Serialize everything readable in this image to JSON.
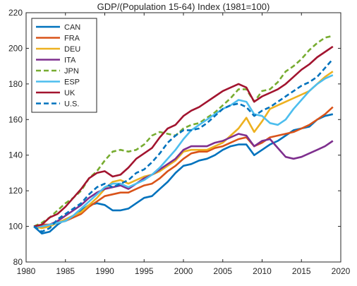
{
  "chart_data": {
    "type": "line",
    "title": "GDP/(Population 15-64) Index  (1981=100)",
    "xlabel": "",
    "ylabel": "",
    "xlim": [
      1980,
      2020
    ],
    "ylim": [
      80,
      220
    ],
    "xticks": [
      1980,
      1985,
      1990,
      1995,
      2000,
      2005,
      2010,
      2015,
      2020
    ],
    "yticks": [
      80,
      100,
      120,
      140,
      160,
      180,
      200,
      220
    ],
    "grid": false,
    "legend_position": "top-left",
    "x": [
      1981,
      1982,
      1983,
      1984,
      1985,
      1986,
      1987,
      1988,
      1989,
      1990,
      1991,
      1992,
      1993,
      1994,
      1995,
      1996,
      1997,
      1998,
      1999,
      2000,
      2001,
      2002,
      2003,
      2004,
      2005,
      2006,
      2007,
      2008,
      2009,
      2010,
      2011,
      2012,
      2013,
      2014,
      2015,
      2016,
      2017,
      2018,
      2019
    ],
    "series": [
      {
        "name": "CAN",
        "color": "#0072BD",
        "dash": "solid",
        "values": [
          100,
          96,
          97,
          101,
          104,
          106,
          109,
          112,
          113,
          112,
          109,
          109,
          110,
          113,
          116,
          117,
          121,
          125,
          130,
          134,
          135,
          137,
          138,
          140,
          143,
          145,
          146,
          146,
          140,
          143,
          146,
          148,
          151,
          154,
          155,
          156,
          160,
          162,
          163
        ]
      },
      {
        "name": "FRA",
        "color": "#D95319",
        "dash": "solid",
        "values": [
          100,
          101,
          101,
          102,
          103,
          105,
          107,
          111,
          114,
          117,
          118,
          119,
          119,
          121,
          123,
          124,
          127,
          131,
          134,
          138,
          141,
          142,
          142,
          144,
          145,
          147,
          149,
          150,
          145,
          147,
          150,
          151,
          152,
          153,
          155,
          157,
          160,
          163,
          167
        ]
      },
      {
        "name": "DEU",
        "color": "#EDB120",
        "dash": "solid",
        "values": [
          100,
          99,
          100,
          102,
          104,
          106,
          108,
          112,
          116,
          121,
          125,
          126,
          124,
          126,
          128,
          129,
          131,
          134,
          137,
          142,
          143,
          143,
          143,
          145,
          147,
          151,
          155,
          161,
          153,
          159,
          166,
          168,
          170,
          172,
          174,
          176,
          180,
          184,
          187
        ]
      },
      {
        "name": "ITA",
        "color": "#7E2F8E",
        "dash": "solid",
        "values": [
          100,
          100,
          101,
          103,
          106,
          109,
          112,
          116,
          119,
          121,
          122,
          123,
          121,
          124,
          127,
          129,
          132,
          135,
          138,
          143,
          145,
          145,
          145,
          147,
          148,
          150,
          152,
          151,
          145,
          148,
          149,
          144,
          139,
          138,
          139,
          141,
          143,
          145,
          148
        ]
      },
      {
        "name": "JPN",
        "color": "#77AC30",
        "dash": "dashed",
        "values": [
          100,
          102,
          105,
          109,
          113,
          116,
          120,
          127,
          131,
          137,
          142,
          143,
          142,
          143,
          146,
          151,
          153,
          152,
          151,
          155,
          157,
          158,
          161,
          164,
          168,
          172,
          177,
          177,
          170,
          176,
          177,
          181,
          187,
          190,
          194,
          199,
          203,
          206,
          207
        ]
      },
      {
        "name": "ESP",
        "color": "#4DBEEE",
        "dash": "solid",
        "values": [
          100,
          100,
          101,
          102,
          103,
          106,
          110,
          114,
          118,
          122,
          124,
          124,
          122,
          124,
          126,
          129,
          133,
          138,
          143,
          149,
          154,
          157,
          160,
          163,
          166,
          168,
          171,
          170,
          163,
          162,
          158,
          157,
          160,
          166,
          171,
          176,
          180,
          183,
          185
        ]
      },
      {
        "name": "UK",
        "color": "#A2142F",
        "dash": "solid",
        "values": [
          100,
          101,
          105,
          107,
          111,
          116,
          121,
          127,
          130,
          131,
          128,
          129,
          133,
          138,
          141,
          144,
          150,
          155,
          157,
          162,
          165,
          167,
          170,
          173,
          176,
          178,
          180,
          178,
          170,
          173,
          175,
          177,
          180,
          184,
          188,
          191,
          195,
          198,
          201
        ]
      },
      {
        "name": "U.S.",
        "color": "#0072BD",
        "dash": "dashed",
        "values": [
          100,
          97,
          99,
          104,
          107,
          110,
          113,
          118,
          122,
          124,
          122,
          124,
          126,
          130,
          132,
          136,
          141,
          147,
          151,
          154,
          154,
          155,
          158,
          162,
          166,
          168,
          169,
          167,
          162,
          165,
          167,
          170,
          173,
          176,
          179,
          181,
          184,
          189,
          194
        ]
      }
    ]
  }
}
